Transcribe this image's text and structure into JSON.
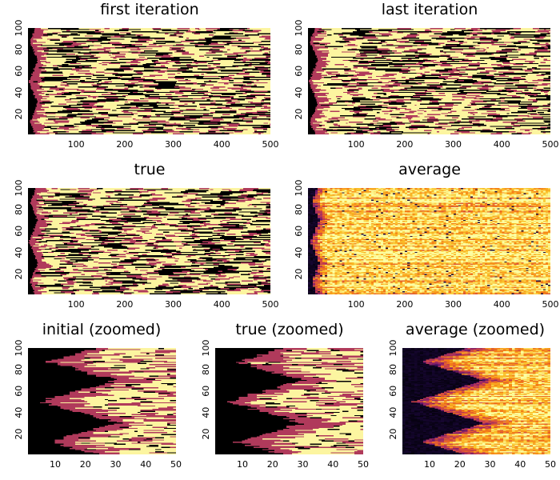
{
  "colors": {
    "state_0": "#000000",
    "state_1": "#b03a5b",
    "state_2": "#fcf5a0",
    "average_colormap": "inferno"
  },
  "chart_data": [
    {
      "type": "heatmap",
      "title": "first iteration",
      "x_ticks": [
        "100",
        "200",
        "300",
        "400",
        "500"
      ],
      "y_ticks": [
        "20",
        "40",
        "60",
        "80",
        "100"
      ],
      "xlim": [
        1,
        500
      ],
      "ylim": [
        1,
        100
      ],
      "categorical": true,
      "grid": false
    },
    {
      "type": "heatmap",
      "title": "last iteration",
      "x_ticks": [
        "100",
        "200",
        "300",
        "400",
        "500"
      ],
      "y_ticks": [
        "20",
        "40",
        "60",
        "80",
        "100"
      ],
      "xlim": [
        1,
        500
      ],
      "ylim": [
        1,
        100
      ],
      "categorical": true,
      "grid": false
    },
    {
      "type": "heatmap",
      "title": "true",
      "x_ticks": [
        "100",
        "200",
        "300",
        "400",
        "500"
      ],
      "y_ticks": [
        "20",
        "40",
        "60",
        "80",
        "100"
      ],
      "xlim": [
        1,
        500
      ],
      "ylim": [
        1,
        100
      ],
      "categorical": true,
      "grid": false
    },
    {
      "type": "heatmap",
      "title": "average",
      "x_ticks": [
        "100",
        "200",
        "300",
        "400",
        "500"
      ],
      "y_ticks": [
        "20",
        "40",
        "60",
        "80",
        "100"
      ],
      "xlim": [
        1,
        500
      ],
      "ylim": [
        1,
        100
      ],
      "categorical": false,
      "grid": false
    },
    {
      "type": "heatmap",
      "title": "initial (zoomed)",
      "x_ticks": [
        "10",
        "20",
        "30",
        "40",
        "50"
      ],
      "y_ticks": [
        "20",
        "40",
        "60",
        "80",
        "100"
      ],
      "xlim": [
        1,
        50
      ],
      "ylim": [
        1,
        100
      ],
      "categorical": true,
      "grid": false
    },
    {
      "type": "heatmap",
      "title": "true (zoomed)",
      "x_ticks": [
        "10",
        "20",
        "30",
        "40",
        "50"
      ],
      "y_ticks": [
        "20",
        "40",
        "60",
        "80",
        "100"
      ],
      "xlim": [
        1,
        50
      ],
      "ylim": [
        1,
        100
      ],
      "categorical": true,
      "grid": false
    },
    {
      "type": "heatmap",
      "title": "average (zoomed)",
      "x_ticks": [
        "10",
        "20",
        "30",
        "40",
        "50"
      ],
      "y_ticks": [
        "20",
        "40",
        "60",
        "80",
        "100"
      ],
      "xlim": [
        1,
        50
      ],
      "ylim": [
        1,
        100
      ],
      "categorical": false,
      "grid": false
    }
  ]
}
